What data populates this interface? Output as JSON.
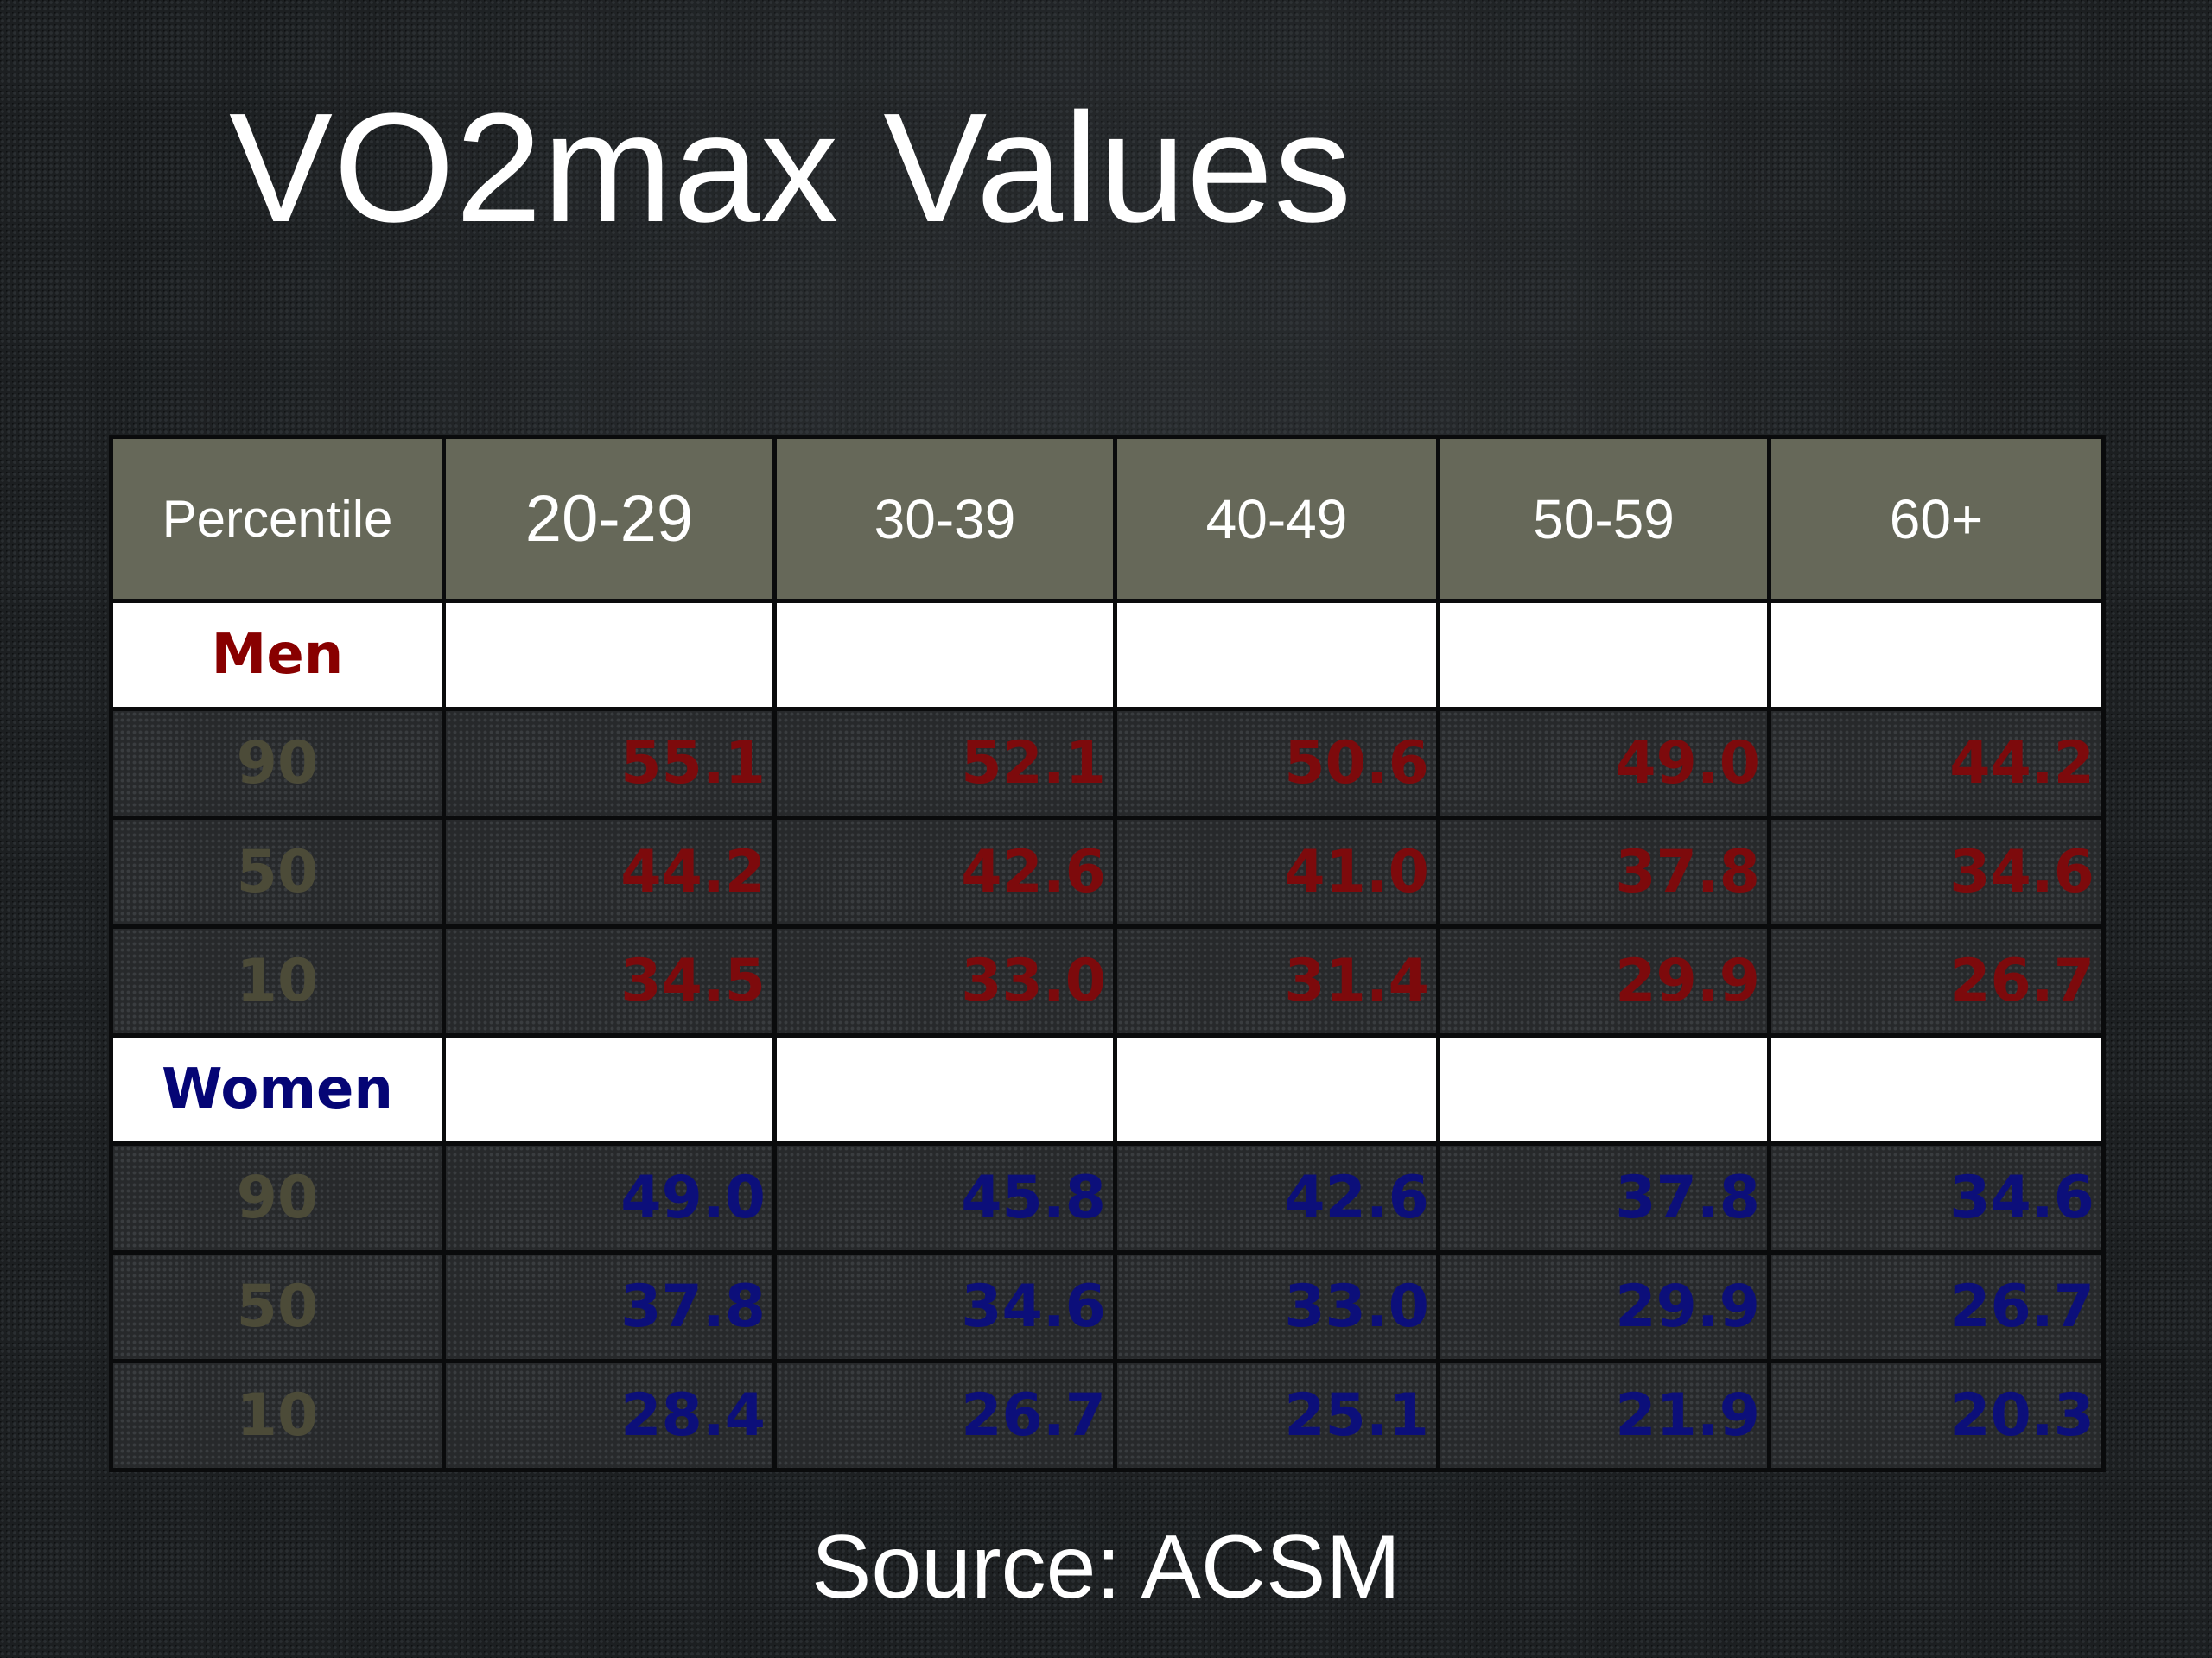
{
  "slide": {
    "title": "VO2max Values",
    "source": "Source: ACSM"
  },
  "table": {
    "headers": [
      "Percentile",
      "20-29",
      "30-39",
      "40-49",
      "50-59",
      "60+"
    ],
    "groups": [
      {
        "label": "Men",
        "color": "#7d0a0c",
        "rows": [
          {
            "percentile": "90",
            "values": [
              "55.1",
              "52.1",
              "50.6",
              "49.0",
              "44.2"
            ]
          },
          {
            "percentile": "50",
            "values": [
              "44.2",
              "42.6",
              "41.0",
              "37.8",
              "34.6"
            ]
          },
          {
            "percentile": "10",
            "values": [
              "34.5",
              "33.0",
              "31.4",
              "29.9",
              "26.7"
            ]
          }
        ]
      },
      {
        "label": "Women",
        "color": "#0c0f7a",
        "rows": [
          {
            "percentile": "90",
            "values": [
              "49.0",
              "45.8",
              "42.6",
              "37.8",
              "34.6"
            ]
          },
          {
            "percentile": "50",
            "values": [
              "37.8",
              "34.6",
              "33.0",
              "29.9",
              "26.7"
            ]
          },
          {
            "percentile": "10",
            "values": [
              "28.4",
              "26.7",
              "25.1",
              "21.9",
              "20.3"
            ]
          }
        ]
      }
    ]
  },
  "colors": {
    "header_bg": "#666859",
    "percentile_text": "#4c4b38",
    "men_label": "#880000",
    "women_label": "#050575"
  }
}
